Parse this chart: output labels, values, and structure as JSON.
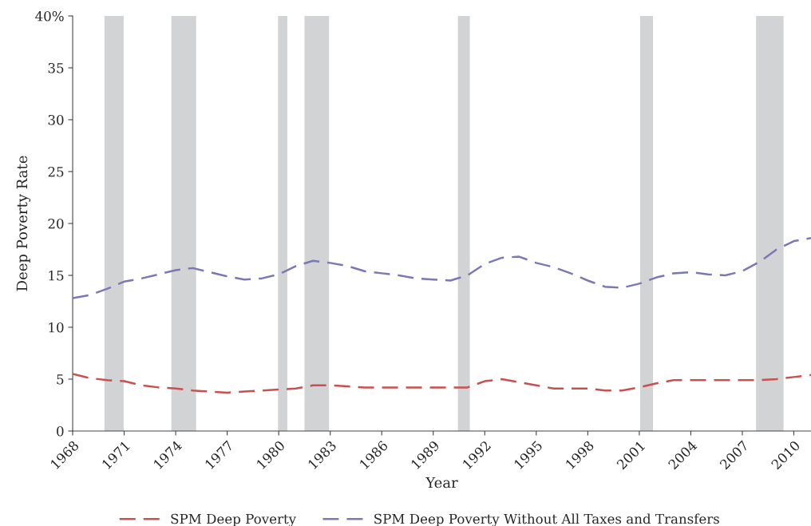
{
  "chart_data": {
    "type": "line",
    "xlabel": "Year",
    "ylabel": "Deep Poverty Rate",
    "x": [
      1968,
      1969,
      1970,
      1971,
      1972,
      1973,
      1974,
      1975,
      1976,
      1977,
      1978,
      1979,
      1980,
      1981,
      1982,
      1983,
      1984,
      1985,
      1986,
      1987,
      1988,
      1989,
      1990,
      1991,
      1992,
      1993,
      1994,
      1995,
      1996,
      1997,
      1998,
      1999,
      2000,
      2001,
      2002,
      2003,
      2004,
      2005,
      2006,
      2007,
      2008,
      2009,
      2010,
      2011
    ],
    "series": [
      {
        "name": "SPM Deep Poverty",
        "color": "#c9504f",
        "line_style": "dashed",
        "values": [
          5.5,
          5.1,
          4.9,
          4.8,
          4.4,
          4.2,
          4.1,
          3.9,
          3.8,
          3.7,
          3.8,
          3.9,
          4.0,
          4.1,
          4.4,
          4.4,
          4.3,
          4.2,
          4.2,
          4.2,
          4.2,
          4.2,
          4.2,
          4.2,
          4.8,
          5.0,
          4.7,
          4.4,
          4.1,
          4.1,
          4.1,
          3.9,
          3.9,
          4.2,
          4.6,
          4.9,
          4.9,
          4.9,
          4.9,
          4.9,
          4.9,
          5.0,
          5.2,
          5.4
        ]
      },
      {
        "name": "SPM Deep Poverty Without All Taxes and Transfers",
        "color": "#7b78b4",
        "line_style": "dashed",
        "values": [
          12.8,
          13.1,
          13.7,
          14.4,
          14.7,
          15.1,
          15.5,
          15.7,
          15.3,
          14.9,
          14.6,
          14.7,
          15.1,
          15.9,
          16.4,
          16.2,
          15.9,
          15.4,
          15.2,
          15.0,
          14.7,
          14.6,
          14.5,
          15.0,
          16.1,
          16.7,
          16.8,
          16.2,
          15.8,
          15.2,
          14.5,
          13.9,
          13.8,
          14.2,
          14.8,
          15.2,
          15.3,
          15.1,
          15.0,
          15.4,
          16.3,
          17.5,
          18.3,
          18.6
        ]
      }
    ],
    "xlim": [
      1968,
      2011
    ],
    "xticks": [
      1968,
      1971,
      1974,
      1977,
      1980,
      1983,
      1986,
      1989,
      1992,
      1995,
      1998,
      2001,
      2004,
      2007,
      2010
    ],
    "ylim": [
      0,
      40
    ],
    "yticks": [
      0,
      5,
      10,
      15,
      20,
      25,
      30,
      35,
      {
        "value": 40,
        "label": "40%"
      }
    ],
    "bands": [
      {
        "axis": "x",
        "from": 1969.85,
        "to": 1970.97,
        "color": "#d1d3d4"
      },
      {
        "axis": "x",
        "from": 1973.75,
        "to": 1975.19,
        "color": "#d1d3d4"
      },
      {
        "axis": "x",
        "from": 1979.96,
        "to": 1980.5,
        "color": "#d1d3d4"
      },
      {
        "axis": "x",
        "from": 1981.5,
        "to": 1982.93,
        "color": "#d1d3d4"
      },
      {
        "axis": "x",
        "from": 1990.44,
        "to": 1991.13,
        "color": "#d1d3d4"
      },
      {
        "axis": "x",
        "from": 2001.05,
        "to": 2001.8,
        "color": "#d1d3d4"
      },
      {
        "axis": "x",
        "from": 2007.8,
        "to": 2009.4,
        "color": "#d1d3d4"
      }
    ],
    "grid": false,
    "legend": "bottom"
  }
}
